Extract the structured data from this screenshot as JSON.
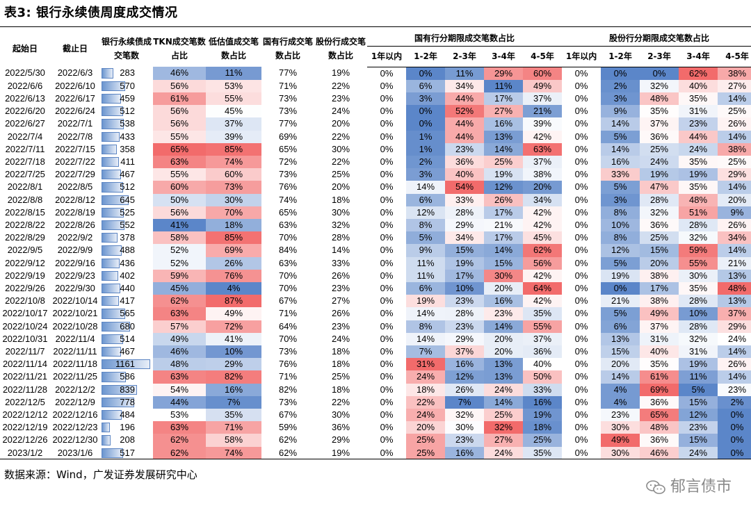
{
  "title": "表3:  银行永续债周度成交情况",
  "headers": {
    "start": "起始日",
    "end": "截止日",
    "count": "银行永续债成交笔数",
    "tkn": "TKN成交笔数占比",
    "low": "低估值成交笔数占比",
    "state": "国有行成交笔数占比",
    "joint": "股份行成交笔数占比",
    "state_group": "国有行分期限成交笔数占比",
    "joint_group": "股份行分期限成交笔数占比",
    "terms": [
      "1年以内",
      "1-2年",
      "2-3年",
      "3-4年",
      "4-5年"
    ]
  },
  "rows": [
    {
      "start": "2022/5/30",
      "end": "2022/6/3",
      "count": 283,
      "tkn": 46,
      "low": 11,
      "state": 77,
      "joint": 19,
      "s": [
        0,
        0,
        11,
        29,
        60
      ],
      "j": [
        0,
        0,
        0,
        62,
        38
      ]
    },
    {
      "start": "2022/6/6",
      "end": "2022/6/10",
      "count": 570,
      "tkn": 56,
      "low": 53,
      "state": 71,
      "joint": 22,
      "s": [
        0,
        6,
        34,
        11,
        49
      ],
      "j": [
        0,
        2,
        32,
        40,
        27
      ]
    },
    {
      "start": "2022/6/13",
      "end": "2022/6/17",
      "count": 459,
      "tkn": 61,
      "low": 55,
      "state": 73,
      "joint": 23,
      "s": [
        0,
        3,
        44,
        17,
        37
      ],
      "j": [
        0,
        3,
        48,
        35,
        14
      ]
    },
    {
      "start": "2022/6/20",
      "end": "2022/6/24",
      "count": 512,
      "tkn": 56,
      "low": 45,
      "state": 73,
      "joint": 24,
      "s": [
        0,
        0,
        52,
        27,
        21
      ],
      "j": [
        0,
        9,
        35,
        31,
        25
      ]
    },
    {
      "start": "2022/6/27",
      "end": "2022/7/1",
      "count": 538,
      "tkn": 56,
      "low": 37,
      "state": 77,
      "joint": 20,
      "s": [
        0,
        0,
        44,
        16,
        39
      ],
      "j": [
        0,
        14,
        37,
        23,
        26
      ]
    },
    {
      "start": "2022/7/4",
      "end": "2022/7/8",
      "count": 433,
      "tkn": 55,
      "low": 39,
      "state": 69,
      "joint": 22,
      "s": [
        0,
        1,
        44,
        13,
        42
      ],
      "j": [
        0,
        5,
        36,
        44,
        14
      ]
    },
    {
      "start": "2022/7/11",
      "end": "2022/7/15",
      "count": 358,
      "tkn": 65,
      "low": 85,
      "state": 65,
      "joint": 30,
      "s": [
        0,
        1,
        23,
        14,
        63
      ],
      "j": [
        0,
        14,
        25,
        24,
        38
      ]
    },
    {
      "start": "2022/7/18",
      "end": "2022/7/22",
      "count": 411,
      "tkn": 63,
      "low": 74,
      "state": 72,
      "joint": 22,
      "s": [
        0,
        2,
        36,
        25,
        37
      ],
      "j": [
        0,
        16,
        24,
        35,
        25
      ]
    },
    {
      "start": "2022/7/25",
      "end": "2022/7/29",
      "count": 467,
      "tkn": 55,
      "low": 60,
      "state": 73,
      "joint": 25,
      "s": [
        0,
        3,
        40,
        19,
        38
      ],
      "j": [
        0,
        33,
        19,
        19,
        29
      ]
    },
    {
      "start": "2022/8/1",
      "end": "2022/8/5",
      "count": 512,
      "tkn": 60,
      "low": 73,
      "state": 76,
      "joint": 20,
      "s": [
        0,
        14,
        54,
        12,
        20
      ],
      "j": [
        0,
        5,
        47,
        35,
        14
      ]
    },
    {
      "start": "2022/8/8",
      "end": "2022/8/12",
      "count": 645,
      "tkn": 50,
      "low": 30,
      "state": 74,
      "joint": 18,
      "s": [
        0,
        6,
        33,
        26,
        34
      ],
      "j": [
        0,
        3,
        28,
        48,
        20
      ]
    },
    {
      "start": "2022/8/15",
      "end": "2022/8/19",
      "count": 525,
      "tkn": 56,
      "low": 70,
      "state": 65,
      "joint": 30,
      "s": [
        0,
        12,
        28,
        17,
        42
      ],
      "j": [
        0,
        8,
        32,
        51,
        9
      ]
    },
    {
      "start": "2022/8/22",
      "end": "2022/8/26",
      "count": 552,
      "tkn": 41,
      "low": 18,
      "state": 63,
      "joint": 32,
      "s": [
        0,
        8,
        29,
        21,
        42
      ],
      "j": [
        0,
        10,
        36,
        28,
        26
      ]
    },
    {
      "start": "2022/8/29",
      "end": "2022/9/2",
      "count": 378,
      "tkn": 58,
      "low": 85,
      "state": 70,
      "joint": 28,
      "s": [
        0,
        5,
        34,
        17,
        45
      ],
      "j": [
        0,
        8,
        25,
        32,
        34
      ]
    },
    {
      "start": "2022/9/5",
      "end": "2022/9/9",
      "count": 488,
      "tkn": 52,
      "low": 69,
      "state": 84,
      "joint": 14,
      "s": [
        0,
        9,
        15,
        14,
        62
      ],
      "j": [
        0,
        12,
        15,
        59,
        14
      ]
    },
    {
      "start": "2022/9/12",
      "end": "2022/9/16",
      "count": 436,
      "tkn": 52,
      "low": 26,
      "state": 63,
      "joint": 33,
      "s": [
        0,
        11,
        19,
        15,
        56
      ],
      "j": [
        0,
        5,
        20,
        55,
        21
      ]
    },
    {
      "start": "2022/9/19",
      "end": "2022/9/23",
      "count": 402,
      "tkn": 59,
      "low": 76,
      "state": 70,
      "joint": 26,
      "s": [
        0,
        11,
        17,
        30,
        42
      ],
      "j": [
        0,
        19,
        38,
        30,
        13
      ]
    },
    {
      "start": "2022/9/26",
      "end": "2022/9/30",
      "count": 440,
      "tkn": 45,
      "low": 4,
      "state": 70,
      "joint": 23,
      "s": [
        0,
        6,
        10,
        20,
        64
      ],
      "j": [
        0,
        0,
        17,
        35,
        48
      ]
    },
    {
      "start": "2022/10/8",
      "end": "2022/10/14",
      "count": 417,
      "tkn": 62,
      "low": 87,
      "state": 67,
      "joint": 27,
      "s": [
        0,
        19,
        23,
        16,
        42
      ],
      "j": [
        0,
        21,
        38,
        28,
        13
      ]
    },
    {
      "start": "2022/10/17",
      "end": "2022/10/21",
      "count": 565,
      "tkn": 63,
      "low": 49,
      "state": 71,
      "joint": 26,
      "s": [
        0,
        14,
        28,
        23,
        35
      ],
      "j": [
        0,
        5,
        49,
        10,
        37
      ]
    },
    {
      "start": "2022/10/24",
      "end": "2022/10/28",
      "count": 680,
      "tkn": 57,
      "low": 72,
      "state": 64,
      "joint": 23,
      "s": [
        0,
        8,
        23,
        14,
        55
      ],
      "j": [
        0,
        6,
        37,
        28,
        29
      ]
    },
    {
      "start": "2022/10/31",
      "end": "2022/11/4",
      "count": 514,
      "tkn": 49,
      "low": 41,
      "state": 70,
      "joint": 24,
      "s": [
        0,
        14,
        29,
        20,
        37
      ],
      "j": [
        0,
        13,
        31,
        32,
        24
      ]
    },
    {
      "start": "2022/11/7",
      "end": "2022/11/11",
      "count": 467,
      "tkn": 46,
      "low": 10,
      "state": 73,
      "joint": 18,
      "s": [
        0,
        7,
        37,
        20,
        36
      ],
      "j": [
        0,
        15,
        40,
        31,
        14
      ]
    },
    {
      "start": "2022/11/14",
      "end": "2022/11/18",
      "count": 1161,
      "tkn": 48,
      "low": 29,
      "state": 76,
      "joint": 18,
      "s": [
        0,
        31,
        16,
        13,
        40
      ],
      "j": [
        0,
        20,
        35,
        19,
        26
      ]
    },
    {
      "start": "2022/11/21",
      "end": "2022/11/25",
      "count": 586,
      "tkn": 63,
      "low": 82,
      "state": 71,
      "joint": 25,
      "s": [
        0,
        24,
        12,
        13,
        50
      ],
      "j": [
        0,
        14,
        61,
        11,
        14
      ]
    },
    {
      "start": "2022/11/28",
      "end": "2022/12/2",
      "count": 839,
      "tkn": 54,
      "low": 16,
      "state": 82,
      "joint": 18,
      "s": [
        0,
        18,
        26,
        24,
        33
      ],
      "j": [
        0,
        4,
        69,
        5,
        23
      ]
    },
    {
      "start": "2022/12/5",
      "end": "2022/12/9",
      "count": 778,
      "tkn": 44,
      "low": 7,
      "state": 73,
      "joint": 22,
      "s": [
        0,
        22,
        7,
        14,
        16
      ],
      "j": [
        0,
        4,
        36,
        15,
        2
      ]
    },
    {
      "start": "2022/12/12",
      "end": "2022/12/16",
      "count": 484,
      "tkn": 53,
      "low": 35,
      "state": 67,
      "joint": 30,
      "s": [
        0,
        24,
        32,
        25,
        19
      ],
      "j": [
        0,
        23,
        65,
        12,
        0
      ]
    },
    {
      "start": "2022/12/19",
      "end": "2022/12/23",
      "count": 196,
      "tkn": 63,
      "low": 71,
      "state": 59,
      "joint": 36,
      "s": [
        0,
        20,
        30,
        32,
        18
      ],
      "j": [
        0,
        30,
        48,
        23,
        0
      ]
    },
    {
      "start": "2022/12/26",
      "end": "2022/12/30",
      "count": 208,
      "tkn": 62,
      "low": 58,
      "state": 62,
      "joint": 29,
      "s": [
        0,
        25,
        23,
        27,
        25
      ],
      "j": [
        0,
        49,
        36,
        15,
        0
      ]
    },
    {
      "start": "2023/1/2",
      "end": "2023/1/6",
      "count": 517,
      "tkn": 62,
      "low": 74,
      "state": 62,
      "joint": 19,
      "s": [
        0,
        25,
        16,
        24,
        35
      ],
      "j": [
        0,
        30,
        46,
        24,
        0
      ]
    }
  ],
  "source": "数据来源：Wind，广发证券发展研究中心",
  "watermark": "郁言债市",
  "colors": {
    "blue": "#5b86c9",
    "red": "#f26b6b",
    "white": "#ffffff",
    "bar": "#5b84c2"
  }
}
